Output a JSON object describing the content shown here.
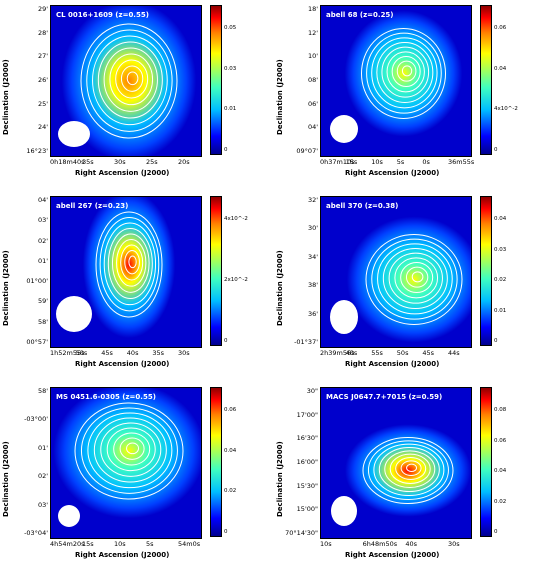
{
  "chart_data": [
    {
      "type": "heatmap",
      "title": "CL 0016+1609 (z=0.55)",
      "xlabel": "Right Ascension (J2000)",
      "ylabel": "Declination (J2000)",
      "yticks": [
        "29'",
        "28'",
        "27'",
        "26'",
        "25'",
        "24'",
        "16°23'"
      ],
      "xticks": [
        "0h18m40s",
        "35s",
        "30s",
        "25s",
        "20s"
      ],
      "cbar_ticks": [
        "0.05",
        "0.03",
        "0.01",
        "0"
      ],
      "colors": {
        "hot": "#ff8000",
        "mid": "#ffff00",
        "bg": "#0000cc"
      }
    },
    {
      "type": "heatmap",
      "title": "abell 68 (z=0.25)",
      "xlabel": "Right Ascension (J2000)",
      "ylabel": "Declination (J2000)",
      "yticks": [
        "18'",
        "12'",
        "10'",
        "08'",
        "06'",
        "04'",
        "09°07'"
      ],
      "xticks": [
        "0h37m10s",
        "15s",
        "10s",
        "5s",
        "0s",
        "36m55s"
      ],
      "cbar_ticks": [
        "0.06",
        "0.04",
        "4x10^-2",
        "0"
      ],
      "colors": {
        "hot": "#ffff00",
        "mid": "#40ffbf",
        "bg": "#0000cc"
      }
    },
    {
      "type": "heatmap",
      "title": "abell 267 (z=0.23)",
      "xlabel": "Right Ascension (J2000)",
      "ylabel": "Declination (J2000)",
      "yticks": [
        "04'",
        "03'",
        "02'",
        "01'",
        "01°00'",
        "59'",
        "58'",
        "00°57'"
      ],
      "xticks": [
        "1h52m55s",
        "50s",
        "45s",
        "40s",
        "35s",
        "30s"
      ],
      "cbar_ticks": [
        "4x10^-2",
        "2x10^-2",
        "0"
      ],
      "colors": {
        "hot": "#ff0000",
        "mid": "#ffff00",
        "bg": "#0000cc"
      }
    },
    {
      "type": "heatmap",
      "title": "abell 370 (z=0.38)",
      "xlabel": "Right Ascension (J2000)",
      "ylabel": "Declination (J2000)",
      "yticks": [
        "32'",
        "30'",
        "34'",
        "38'",
        "36'",
        "-01°37'"
      ],
      "xticks": [
        "2h39m56s",
        "40s",
        "55s",
        "50s",
        "45s",
        "44s"
      ],
      "cbar_ticks": [
        "0.04",
        "0.03",
        "0.02",
        "0.01",
        "0"
      ],
      "colors": {
        "hot": "#ffff00",
        "mid": "#40ffbf",
        "bg": "#0000cc"
      }
    },
    {
      "type": "heatmap",
      "title": "MS 0451.6-0305 (z=0.55)",
      "xlabel": "Right Ascension (J2000)",
      "ylabel": "Declination (J2000)",
      "yticks": [
        "58'",
        "-03°00'",
        "01'",
        "02'",
        "03'",
        "-03°04'"
      ],
      "xticks": [
        "4h54m20s",
        "15s",
        "10s",
        "5s",
        "54m0s"
      ],
      "cbar_ticks": [
        "0.06",
        "0.04",
        "0.02",
        "0"
      ],
      "colors": {
        "hot": "#ffff00",
        "mid": "#40ffbf",
        "bg": "#0000cc"
      }
    },
    {
      "type": "heatmap",
      "title": "MACS J0647.7+7015 (z=0.59)",
      "xlabel": "Right Ascension (J2000)",
      "ylabel": "Declination (J2000)",
      "yticks": [
        "30\"",
        "17'00\"",
        "16'30\"",
        "16'00\"",
        "15'30\"",
        "15'00\"",
        "70°14'30\""
      ],
      "xticks": [
        "10s",
        "6h48m50s",
        "40s",
        "30s"
      ],
      "cbar_ticks": [
        "0.08",
        "0.06",
        "0.04",
        "0.02",
        "0"
      ],
      "colors": {
        "hot": "#ff0000",
        "mid": "#ffff00",
        "bg": "#0000cc"
      }
    }
  ]
}
